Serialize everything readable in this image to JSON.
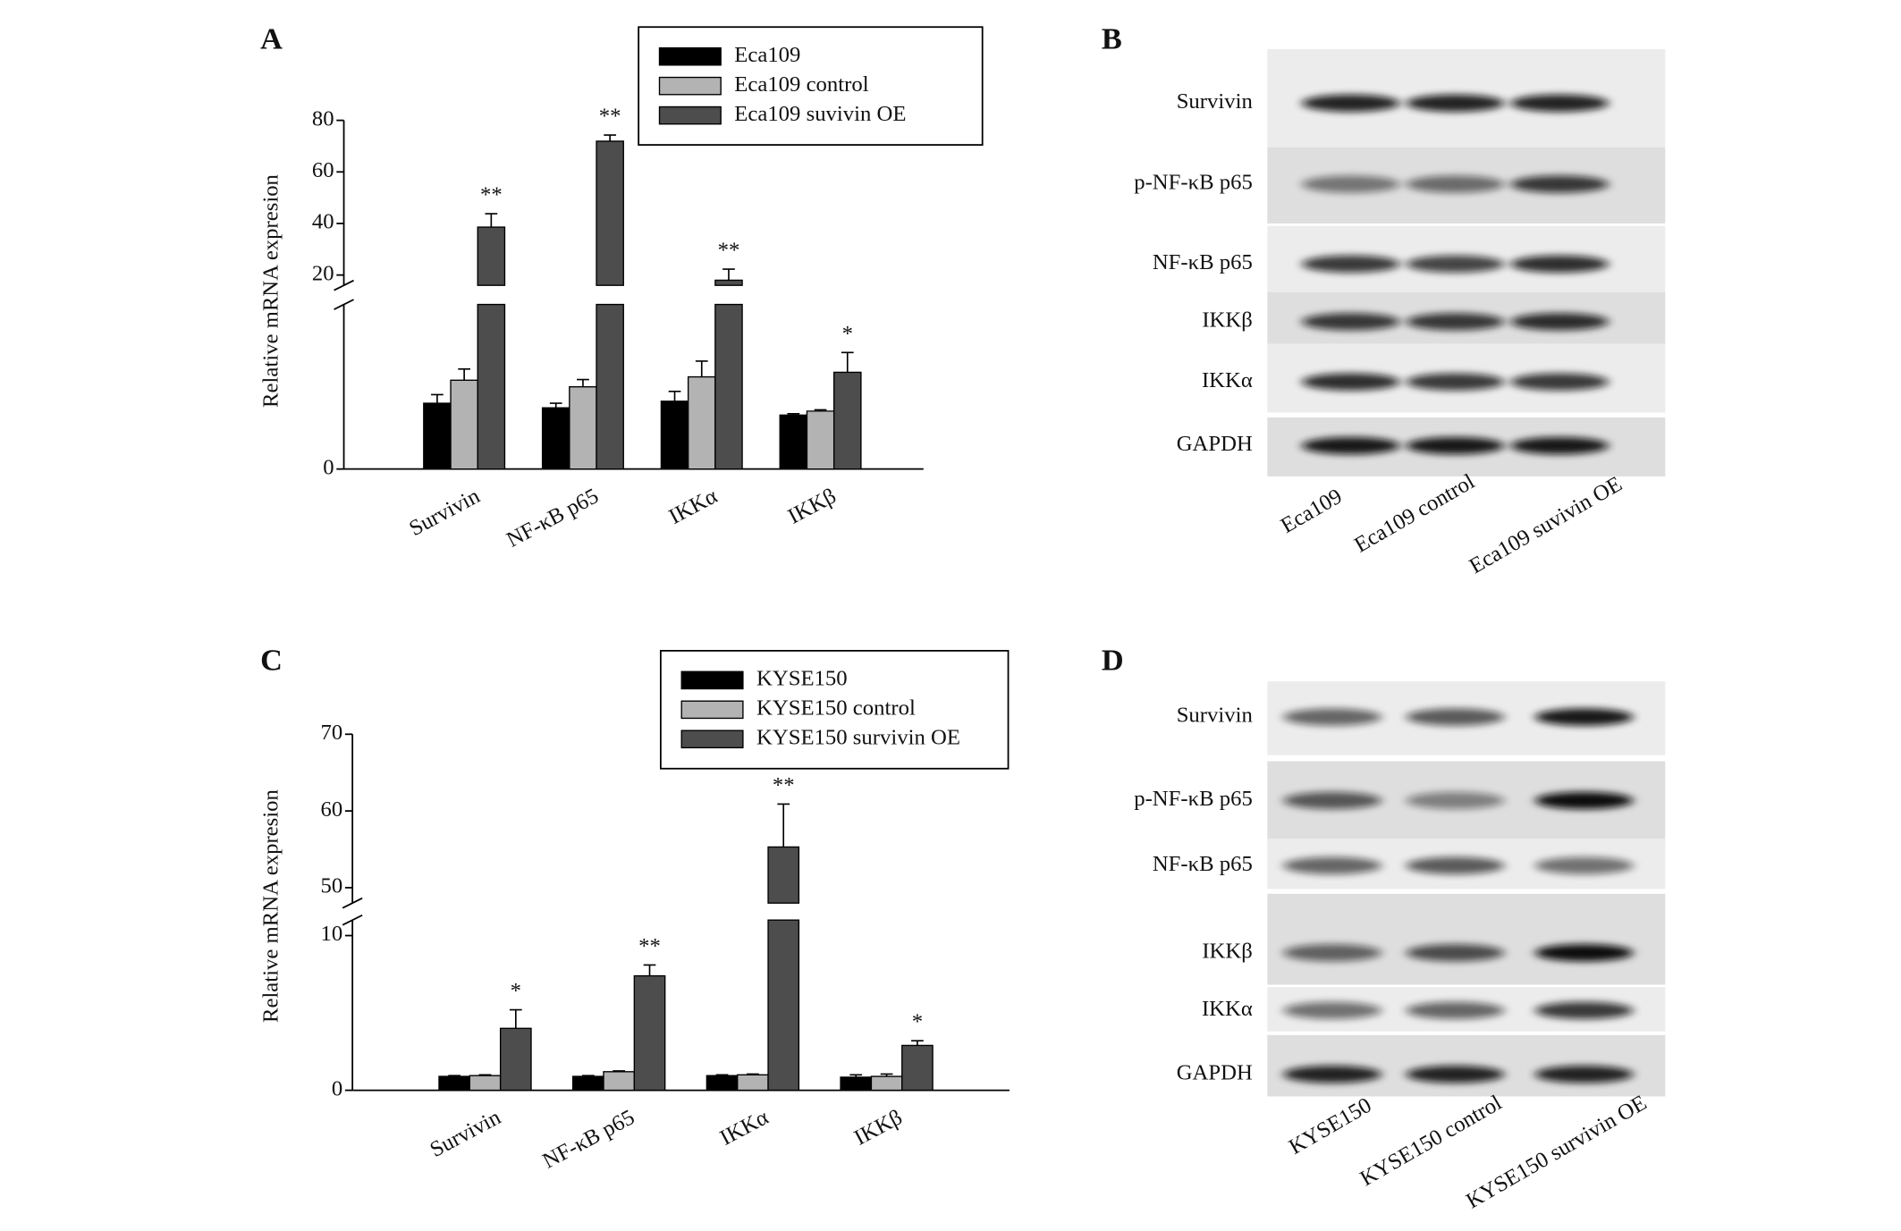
{
  "chart_data": [
    {
      "type": "bar",
      "panel": "A",
      "y_label": "Relative mRNA expresion",
      "categories": [
        "Survivin",
        "NF-κB p65",
        "IKKα",
        "IKKβ"
      ],
      "ysegments": [
        {
          "ylim": [
            0,
            2.5
          ],
          "yticks": [
            0
          ]
        },
        {
          "ylim": [
            16,
            80
          ],
          "yticks": [
            20,
            40,
            60,
            80
          ]
        }
      ],
      "series": [
        {
          "name": "Eca109",
          "color": "#000000",
          "values": [
            1.0,
            0.93,
            1.03,
            0.82
          ],
          "errors": [
            0.13,
            0.07,
            0.15,
            0.02
          ]
        },
        {
          "name": "Eca109 control",
          "color": "#b3b3b3",
          "values": [
            1.35,
            1.25,
            1.4,
            0.88
          ],
          "errors": [
            0.17,
            0.11,
            0.24,
            0.02
          ]
        },
        {
          "name": "Eca109 suvivin OE",
          "color": "#4d4d4d",
          "values": [
            38.6,
            71.9,
            18,
            1.47
          ],
          "errors": [
            5.2,
            2.4,
            4.3,
            0.3
          ],
          "annotations": [
            "**",
            "**",
            "**",
            "*"
          ]
        }
      ]
    },
    {
      "type": "bar",
      "panel": "C",
      "y_label": "Relative mRNA expresion",
      "categories": [
        "Survivin",
        "NF-κB p65",
        "IKKα",
        "IKKβ"
      ],
      "ysegments": [
        {
          "ylim": [
            0,
            11
          ],
          "yticks": [
            0,
            10
          ]
        },
        {
          "ylim": [
            48,
            70
          ],
          "yticks": [
            50,
            60,
            70
          ]
        }
      ],
      "series": [
        {
          "name": "KYSE150",
          "color": "#000000",
          "values": [
            0.9,
            0.9,
            0.95,
            0.85
          ],
          "errors": [
            0.05,
            0.05,
            0.05,
            0.15
          ]
        },
        {
          "name": "KYSE150 control",
          "color": "#b3b3b3",
          "values": [
            0.95,
            1.2,
            1.0,
            0.9
          ],
          "errors": [
            0.05,
            0.05,
            0.05,
            0.15
          ]
        },
        {
          "name": "KYSE150 survivin OE",
          "color": "#4d4d4d",
          "values": [
            4.0,
            7.4,
            55.3,
            2.9
          ],
          "errors": [
            1.2,
            0.7,
            5.6,
            0.3
          ],
          "annotations": [
            "*",
            "**",
            "**",
            "*"
          ]
        }
      ]
    }
  ],
  "blots": [
    {
      "panel": "B",
      "rows": [
        "Survivin",
        "p-NF-κB p65",
        "NF-κB p65",
        "IKKβ",
        "IKKα",
        "GAPDH"
      ],
      "lanes": [
        "Eca109",
        "Eca109 control",
        "Eca109 suvivin OE"
      ]
    },
    {
      "panel": "D",
      "rows": [
        "Survivin",
        "p-NF-κB p65",
        "NF-κB p65",
        "IKKβ",
        "IKKα",
        "GAPDH"
      ],
      "lanes": [
        "KYSE150",
        "KYSE150 control",
        "KYSE150 survivin OE"
      ]
    }
  ]
}
